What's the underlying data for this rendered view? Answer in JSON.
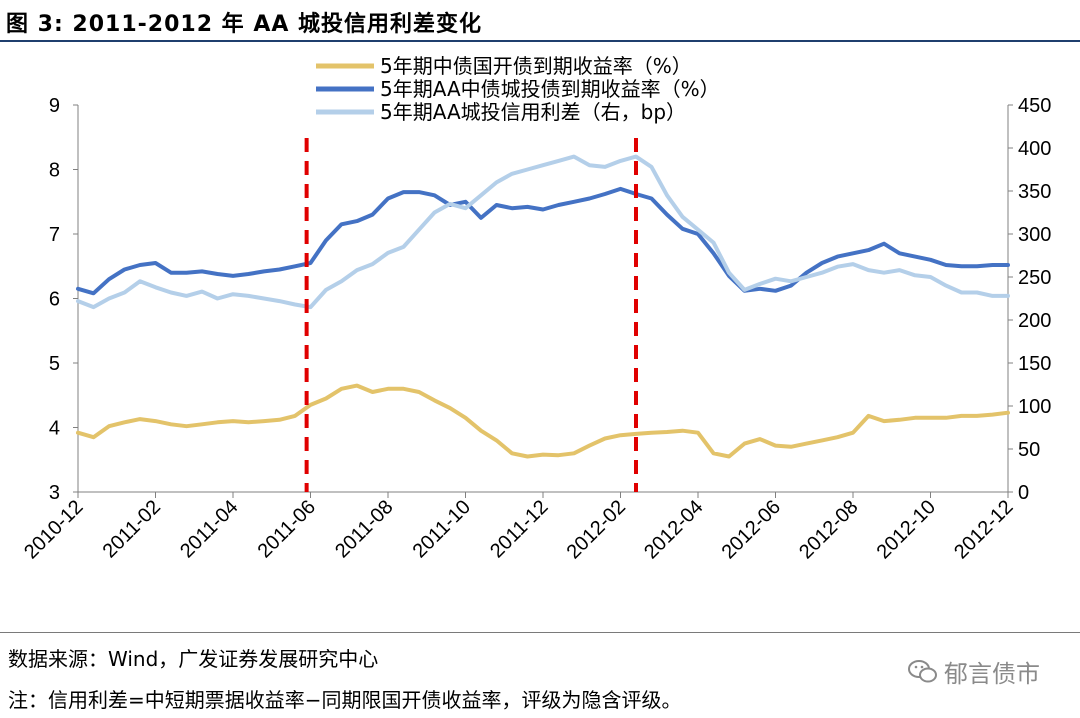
{
  "header": {
    "title": "图 3:  2011-2012 年 AA 城投信用利差变化"
  },
  "footer": {
    "source": "数据来源：Wind，广发证券发展研究中心",
    "note": "注：信用利差=中短期票据收益率−同期限国开债收益率，评级为隐含评级。",
    "watermark": "郁言债市"
  },
  "colors": {
    "gdb": "#e3c36a",
    "aa": "#4472c4",
    "spread": "#b4cfe9",
    "marker": "#e00000"
  },
  "chart_data": {
    "type": "line",
    "x_ticks": [
      "2010-12",
      "2011-02",
      "2011-04",
      "2011-06",
      "2011-08",
      "2011-10",
      "2011-12",
      "2012-02",
      "2012-04",
      "2012-06",
      "2012-08",
      "2012-10",
      "2012-12"
    ],
    "x_range": [
      0,
      24
    ],
    "y_left": {
      "min": 3,
      "max": 9,
      "ticks": [
        "3",
        "4",
        "5",
        "6",
        "7",
        "8",
        "9"
      ]
    },
    "y_right": {
      "min": 0,
      "max": 450,
      "ticks": [
        "0",
        "50",
        "100",
        "150",
        "200",
        "250",
        "300",
        "350",
        "400",
        "450"
      ]
    },
    "legend_position": "top-center",
    "vertical_markers": [
      "2011-06",
      "2012-02"
    ],
    "marker_x": [
      5.9,
      14.4
    ],
    "series": [
      {
        "name": "5年期中债国开债到期收益率（%）",
        "axis": "left",
        "color": "gdb",
        "x": [
          0,
          0.4,
          0.8,
          1.2,
          1.6,
          2,
          2.4,
          2.8,
          3.2,
          3.6,
          4,
          4.4,
          4.8,
          5.2,
          5.6,
          6,
          6.4,
          6.8,
          7.2,
          7.6,
          8,
          8.4,
          8.8,
          9.2,
          9.6,
          10,
          10.4,
          10.8,
          11.2,
          11.6,
          12,
          12.4,
          12.8,
          13.2,
          13.6,
          14,
          14.4,
          14.8,
          15.2,
          15.6,
          16,
          16.4,
          16.8,
          17.2,
          17.6,
          18,
          18.4,
          18.8,
          19.2,
          19.6,
          20,
          20.4,
          20.8,
          21.2,
          21.6,
          22,
          22.4,
          22.8,
          23.2,
          23.6,
          24
        ],
        "y": [
          3.92,
          3.85,
          4.02,
          4.08,
          4.13,
          4.1,
          4.05,
          4.02,
          4.05,
          4.08,
          4.1,
          4.08,
          4.1,
          4.12,
          4.18,
          4.35,
          4.45,
          4.6,
          4.65,
          4.55,
          4.6,
          4.6,
          4.55,
          4.42,
          4.3,
          4.15,
          3.95,
          3.8,
          3.6,
          3.55,
          3.58,
          3.57,
          3.6,
          3.72,
          3.83,
          3.88,
          3.9,
          3.92,
          3.93,
          3.95,
          3.92,
          3.6,
          3.55,
          3.75,
          3.82,
          3.72,
          3.7,
          3.75,
          3.8,
          3.85,
          3.92,
          4.18,
          4.1,
          4.12,
          4.15,
          4.15,
          4.15,
          4.18,
          4.18,
          4.2,
          4.23
        ]
      },
      {
        "name": "5年期AA中债城投债到期收益率（%）",
        "axis": "left",
        "color": "aa",
        "x": [
          0,
          0.4,
          0.8,
          1.2,
          1.6,
          2,
          2.4,
          2.8,
          3.2,
          3.6,
          4,
          4.4,
          4.8,
          5.2,
          5.6,
          6,
          6.4,
          6.8,
          7.2,
          7.6,
          8,
          8.4,
          8.8,
          9.2,
          9.6,
          10,
          10.4,
          10.8,
          11.2,
          11.6,
          12,
          12.4,
          12.8,
          13.2,
          13.6,
          14,
          14.4,
          14.8,
          15.2,
          15.6,
          16,
          16.4,
          16.8,
          17.2,
          17.6,
          18,
          18.4,
          18.8,
          19.2,
          19.6,
          20,
          20.4,
          20.8,
          21.2,
          21.6,
          22,
          22.4,
          22.8,
          23.2,
          23.6,
          24
        ],
        "y": [
          6.15,
          6.08,
          6.3,
          6.45,
          6.52,
          6.55,
          6.4,
          6.4,
          6.42,
          6.38,
          6.35,
          6.38,
          6.42,
          6.45,
          6.5,
          6.55,
          6.9,
          7.15,
          7.2,
          7.3,
          7.55,
          7.65,
          7.65,
          7.6,
          7.45,
          7.5,
          7.25,
          7.45,
          7.4,
          7.42,
          7.38,
          7.45,
          7.5,
          7.55,
          7.62,
          7.7,
          7.62,
          7.55,
          7.3,
          7.08,
          7.0,
          6.7,
          6.35,
          6.12,
          6.15,
          6.12,
          6.2,
          6.4,
          6.55,
          6.65,
          6.7,
          6.75,
          6.85,
          6.7,
          6.65,
          6.6,
          6.52,
          6.5,
          6.5,
          6.52,
          6.52
        ]
      },
      {
        "name": "5年期AA城投信用利差（右，bp）",
        "axis": "right",
        "color": "spread",
        "x": [
          0,
          0.4,
          0.8,
          1.2,
          1.6,
          2,
          2.4,
          2.8,
          3.2,
          3.6,
          4,
          4.4,
          4.8,
          5.2,
          5.6,
          6,
          6.4,
          6.8,
          7.2,
          7.6,
          8,
          8.4,
          8.8,
          9.2,
          9.6,
          10,
          10.4,
          10.8,
          11.2,
          11.6,
          12,
          12.4,
          12.8,
          13.2,
          13.6,
          14,
          14.4,
          14.8,
          15.2,
          15.6,
          16,
          16.4,
          16.8,
          17.2,
          17.6,
          18,
          18.4,
          18.8,
          19.2,
          19.6,
          20,
          20.4,
          20.8,
          21.2,
          21.6,
          22,
          22.4,
          22.8,
          23.2,
          23.6,
          24
        ],
        "y": [
          222,
          215,
          225,
          232,
          245,
          238,
          232,
          228,
          233,
          225,
          230,
          228,
          225,
          222,
          218,
          215,
          235,
          245,
          258,
          265,
          278,
          285,
          305,
          325,
          335,
          330,
          345,
          360,
          370,
          375,
          380,
          385,
          390,
          380,
          378,
          385,
          390,
          378,
          345,
          320,
          305,
          290,
          255,
          235,
          242,
          248,
          245,
          250,
          255,
          262,
          265,
          258,
          255,
          258,
          252,
          250,
          240,
          232,
          232,
          228,
          228
        ]
      }
    ]
  }
}
